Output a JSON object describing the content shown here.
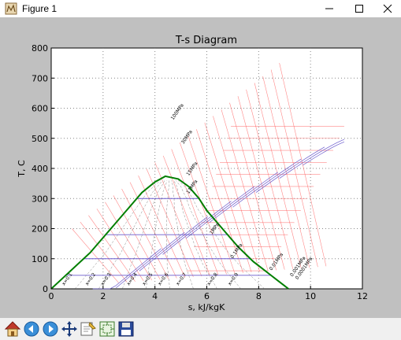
{
  "window": {
    "title": "Figure 1",
    "icon": "matplotlib-figure-icon"
  },
  "controls": {
    "minimize": "minimize-icon",
    "maximize": "maximize-icon",
    "close": "close-icon"
  },
  "toolbar": {
    "tools": [
      {
        "name": "home",
        "icon": "home-icon"
      },
      {
        "name": "back",
        "icon": "back-arrow-icon"
      },
      {
        "name": "forward",
        "icon": "forward-arrow-icon"
      },
      {
        "name": "pan",
        "icon": "pan-icon"
      },
      {
        "name": "zoom",
        "icon": "zoom-icon"
      },
      {
        "name": "subplots",
        "icon": "subplots-config-icon"
      },
      {
        "name": "save",
        "icon": "save-icon"
      }
    ]
  },
  "chart_data": {
    "type": "line",
    "title": "T-s Diagram",
    "xlabel": "s, kJ/kgK",
    "ylabel": "T, C",
    "xlim": [
      0,
      12
    ],
    "ylim": [
      0,
      800
    ],
    "xticks": [
      "0",
      "2",
      "4",
      "6",
      "8",
      "10",
      "12"
    ],
    "yticks": [
      "0",
      "100",
      "200",
      "300",
      "400",
      "500",
      "600",
      "700",
      "800"
    ],
    "grid": true,
    "colors": {
      "saturation": "#007f00",
      "isobar": "#6a5acd",
      "isenthalpic": "#ff5555",
      "quality": "#555555"
    },
    "series": [
      {
        "x": [
          0,
          0.5,
          1.0,
          1.5,
          2.0,
          2.5,
          3.0,
          3.5,
          4.0,
          4.4,
          4.9,
          5.3,
          5.7,
          6.0,
          6.3,
          6.6,
          6.9,
          7.2,
          7.5,
          7.8,
          8.1,
          8.4,
          8.7,
          9.0,
          9.15
        ],
        "y": [
          0,
          40,
          80,
          120,
          170,
          220,
          270,
          320,
          355,
          374,
          365,
          340,
          300,
          260,
          230,
          200,
          170,
          140,
          115,
          90,
          70,
          50,
          30,
          10,
          0
        ]
      }
    ],
    "annotations": [
      {
        "text": "100MPa",
        "x": 4.7,
        "y": 560
      },
      {
        "text": "30MPa",
        "x": 5.1,
        "y": 480
      },
      {
        "text": "15MPa",
        "x": 5.3,
        "y": 375
      },
      {
        "text": "11MPa",
        "x": 5.3,
        "y": 315
      },
      {
        "text": "1MPa",
        "x": 6.2,
        "y": 180
      },
      {
        "text": "0.1MPa",
        "x": 7.0,
        "y": 100
      },
      {
        "text": "0.01MPa",
        "x": 8.5,
        "y": 60
      },
      {
        "text": "0.001MPa",
        "x": 9.3,
        "y": 40
      },
      {
        "text": "0.0001MPa",
        "x": 9.5,
        "y": 30
      },
      {
        "text": "x=0.1",
        "x": 0.5,
        "y": 10
      },
      {
        "text": "x=0.2",
        "x": 1.4,
        "y": 10
      },
      {
        "text": "x=0.3",
        "x": 2.0,
        "y": 10
      },
      {
        "text": "x=0.4",
        "x": 3.0,
        "y": 10
      },
      {
        "text": "x=0.5",
        "x": 3.6,
        "y": 10
      },
      {
        "text": "x=0.6",
        "x": 4.2,
        "y": 10
      },
      {
        "text": "x=0.7",
        "x": 4.9,
        "y": 10
      },
      {
        "text": "x=0.8",
        "x": 6.1,
        "y": 10
      },
      {
        "text": "x=0.9",
        "x": 6.9,
        "y": 10
      }
    ]
  }
}
